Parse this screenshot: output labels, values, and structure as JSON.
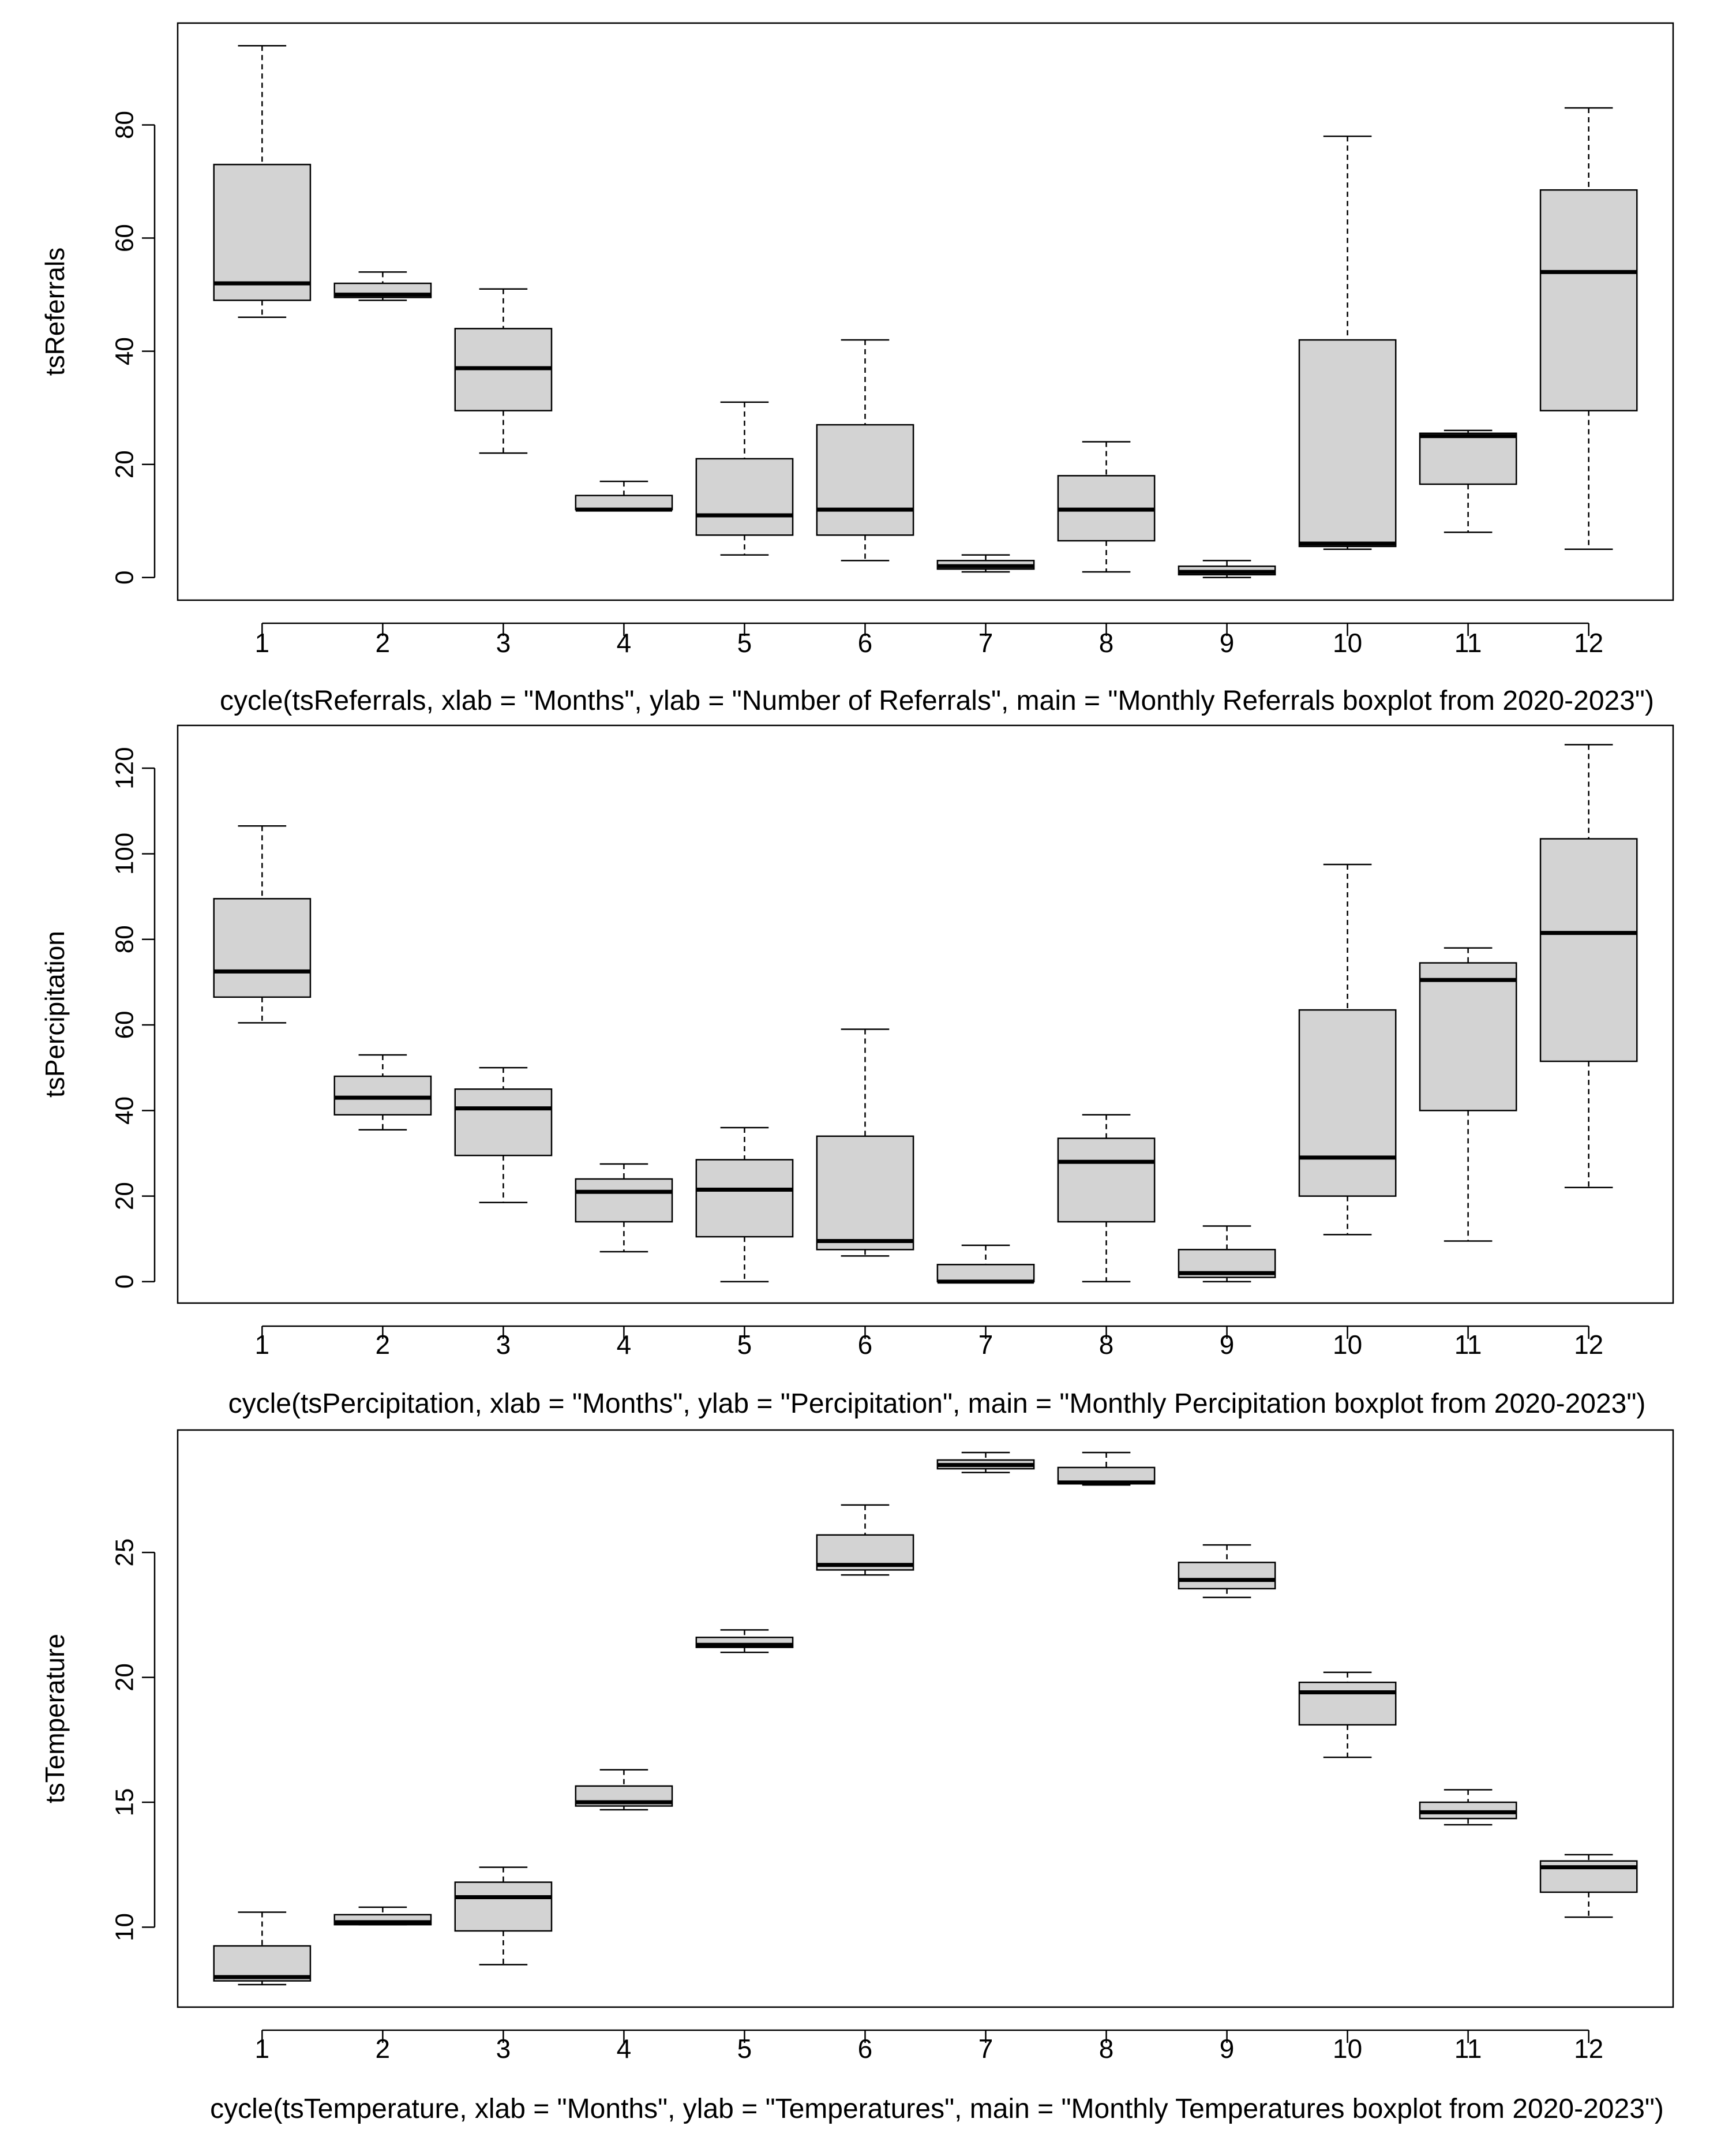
{
  "chart_data": [
    {
      "type": "boxplot",
      "ylabel": "tsReferrals",
      "xlabel": "cycle(tsReferrals, xlab = \"Months\", ylab = \"Number of Referrals\", main = \"Monthly Referrals boxplot from 2020-2023\")",
      "categories": [
        "1",
        "2",
        "3",
        "4",
        "5",
        "6",
        "7",
        "8",
        "9",
        "10",
        "11",
        "12"
      ],
      "ylim": [
        -4,
        98
      ],
      "yticks": [
        0,
        20,
        40,
        60,
        80
      ],
      "boxes": [
        {
          "min": 46,
          "q1": 49,
          "median": 52,
          "q3": 73,
          "max": 94
        },
        {
          "min": 49,
          "q1": 49.5,
          "median": 50,
          "q3": 52,
          "max": 54
        },
        {
          "min": 22,
          "q1": 29.5,
          "median": 37,
          "q3": 44,
          "max": 51
        },
        {
          "min": 12,
          "q1": 12,
          "median": 12,
          "q3": 14.5,
          "max": 17
        },
        {
          "min": 4,
          "q1": 7.5,
          "median": 11,
          "q3": 21,
          "max": 31
        },
        {
          "min": 3,
          "q1": 7.5,
          "median": 12,
          "q3": 27,
          "max": 42
        },
        {
          "min": 1,
          "q1": 1.5,
          "median": 2,
          "q3": 3,
          "max": 4
        },
        {
          "min": 1,
          "q1": 6.5,
          "median": 12,
          "q3": 18,
          "max": 24
        },
        {
          "min": 0,
          "q1": 0.5,
          "median": 1,
          "q3": 2,
          "max": 3
        },
        {
          "min": 5,
          "q1": 5.5,
          "median": 6,
          "q3": 42,
          "max": 78
        },
        {
          "min": 8,
          "q1": 16.5,
          "median": 25,
          "q3": 25.5,
          "max": 26
        },
        {
          "min": 5,
          "q1": 29.5,
          "median": 54,
          "q3": 68.5,
          "max": 83
        }
      ]
    },
    {
      "type": "boxplot",
      "ylabel": "tsPercipitation",
      "xlabel": "cycle(tsPercipitation, xlab = \"Months\", ylab = \"Percipitation\", main = \"Monthly Percipitation boxplot from 2020-2023\")",
      "categories": [
        "1",
        "2",
        "3",
        "4",
        "5",
        "6",
        "7",
        "8",
        "9",
        "10",
        "11",
        "12"
      ],
      "ylim": [
        -5,
        130
      ],
      "yticks": [
        0,
        20,
        40,
        60,
        80,
        100,
        120
      ],
      "boxes": [
        {
          "min": 60.5,
          "q1": 66.5,
          "median": 72.5,
          "q3": 89.5,
          "max": 106.5
        },
        {
          "min": 35.5,
          "q1": 39,
          "median": 43,
          "q3": 48,
          "max": 53
        },
        {
          "min": 18.5,
          "q1": 29.5,
          "median": 40.5,
          "q3": 45,
          "max": 50
        },
        {
          "min": 7,
          "q1": 14,
          "median": 21,
          "q3": 24,
          "max": 27.5
        },
        {
          "min": 0,
          "q1": 10.5,
          "median": 21.5,
          "q3": 28.5,
          "max": 36
        },
        {
          "min": 6,
          "q1": 7.5,
          "median": 9.5,
          "q3": 34,
          "max": 59
        },
        {
          "min": 0,
          "q1": 0,
          "median": 0,
          "q3": 4,
          "max": 8.5
        },
        {
          "min": 0,
          "q1": 14,
          "median": 28,
          "q3": 33.5,
          "max": 39
        },
        {
          "min": 0,
          "q1": 1,
          "median": 2,
          "q3": 7.5,
          "max": 13
        },
        {
          "min": 11,
          "q1": 20,
          "median": 29,
          "q3": 63.5,
          "max": 97.5
        },
        {
          "min": 9.5,
          "q1": 40,
          "median": 70.5,
          "q3": 74.5,
          "max": 78
        },
        {
          "min": 22,
          "q1": 51.5,
          "median": 81.5,
          "q3": 103.5,
          "max": 125.5
        }
      ]
    },
    {
      "type": "boxplot",
      "ylabel": "tsTemperature",
      "xlabel": "cycle(tsTemperature, xlab = \"Months\", ylab = \"Temperatures\", main = \"Monthly Temperatures boxplot from 2020-2023\")",
      "categories": [
        "1",
        "2",
        "3",
        "4",
        "5",
        "6",
        "7",
        "8",
        "9",
        "10",
        "11",
        "12"
      ],
      "ylim": [
        6.8,
        29.9
      ],
      "yticks": [
        10,
        15,
        20,
        25
      ],
      "boxes": [
        {
          "min": 7.7,
          "q1": 7.85,
          "median": 8,
          "q3": 9.25,
          "max": 10.6
        },
        {
          "min": 10.1,
          "q1": 10.1,
          "median": 10.2,
          "q3": 10.5,
          "max": 10.8
        },
        {
          "min": 8.5,
          "q1": 9.85,
          "median": 11.2,
          "q3": 11.8,
          "max": 12.4
        },
        {
          "min": 14.7,
          "q1": 14.85,
          "median": 15,
          "q3": 15.65,
          "max": 16.3
        },
        {
          "min": 21,
          "q1": 21.2,
          "median": 21.3,
          "q3": 21.6,
          "max": 21.9
        },
        {
          "min": 24.1,
          "q1": 24.3,
          "median": 24.5,
          "q3": 25.7,
          "max": 26.9
        },
        {
          "min": 28.2,
          "q1": 28.35,
          "median": 28.5,
          "q3": 28.7,
          "max": 29
        },
        {
          "min": 27.7,
          "q1": 27.75,
          "median": 27.8,
          "q3": 28.4,
          "max": 29
        },
        {
          "min": 23.2,
          "q1": 23.55,
          "median": 23.9,
          "q3": 24.6,
          "max": 25.3
        },
        {
          "min": 16.8,
          "q1": 18.1,
          "median": 19.4,
          "q3": 19.8,
          "max": 20.2
        },
        {
          "min": 14.1,
          "q1": 14.35,
          "median": 14.6,
          "q3": 15,
          "max": 15.5
        },
        {
          "min": 10.4,
          "q1": 11.4,
          "median": 12.4,
          "q3": 12.65,
          "max": 12.9
        }
      ]
    }
  ]
}
